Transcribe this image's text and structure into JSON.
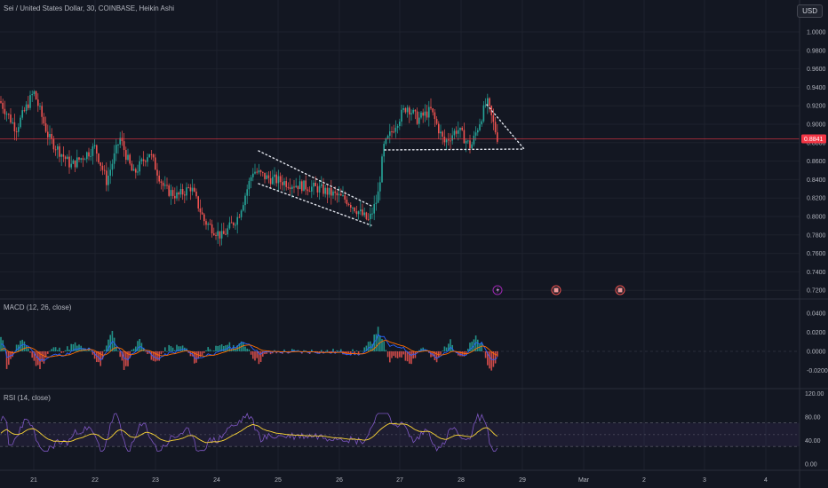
{
  "header": {
    "symbol_title": "Sei / United States Dollar, 30, COINBASE, Heikin Ashi",
    "currency_button": "USD"
  },
  "panes": {
    "macd_label": "MACD (12, 26, close)",
    "rsi_label": "RSI (14, close)"
  },
  "price_axis": {
    "ticks": [
      "1.0000",
      "0.9800",
      "0.9600",
      "0.9400",
      "0.9200",
      "0.9000",
      "0.8800",
      "0.8600",
      "0.8400",
      "0.8200",
      "0.8000",
      "0.7800",
      "0.7600",
      "0.7400",
      "0.7200"
    ],
    "tick_values": [
      1.0,
      0.98,
      0.96,
      0.94,
      0.92,
      0.9,
      0.88,
      0.86,
      0.84,
      0.82,
      0.8,
      0.78,
      0.76,
      0.74,
      0.72
    ],
    "current_price": "0.8841",
    "current_value": 0.8841
  },
  "macd_axis": {
    "ticks": [
      "0.0400",
      "0.0200",
      "0.0000",
      "-0.0200"
    ],
    "tick_values": [
      0.04,
      0.02,
      0.0,
      -0.02
    ]
  },
  "rsi_axis": {
    "ticks": [
      "120.00",
      "80.00",
      "40.00",
      "0.00"
    ],
    "tick_values": [
      120,
      80,
      40,
      0
    ],
    "upper_band": 70,
    "lower_band": 30
  },
  "time_axis": {
    "labels": [
      "21",
      "22",
      "23",
      "24",
      "25",
      "26",
      "27",
      "28",
      "29",
      "Mar",
      "2",
      "3",
      "4"
    ]
  },
  "event_markers": [
    {
      "icon": "lightning-icon"
    },
    {
      "icon": "calendar-flag-icon"
    },
    {
      "icon": "calendar-flag-icon"
    }
  ],
  "colors": {
    "background": "#131722",
    "bull": "#26a69a",
    "bear": "#ef5350",
    "price_line": "#f23645",
    "macd_line": "#2962ff",
    "signal_line": "#ff6d00",
    "rsi_line": "#7e57c2",
    "rsi_ma": "#fdd835",
    "grid": "#1e222d"
  },
  "chart_data": {
    "type": "line",
    "title": "Sei / United States Dollar, 30, COINBASE, Heikin Ashi",
    "x": [
      "21",
      "22",
      "23",
      "24",
      "25",
      "26",
      "27",
      "28"
    ],
    "series": [],
    "ylim": [
      0.715,
      1.005
    ]
  }
}
